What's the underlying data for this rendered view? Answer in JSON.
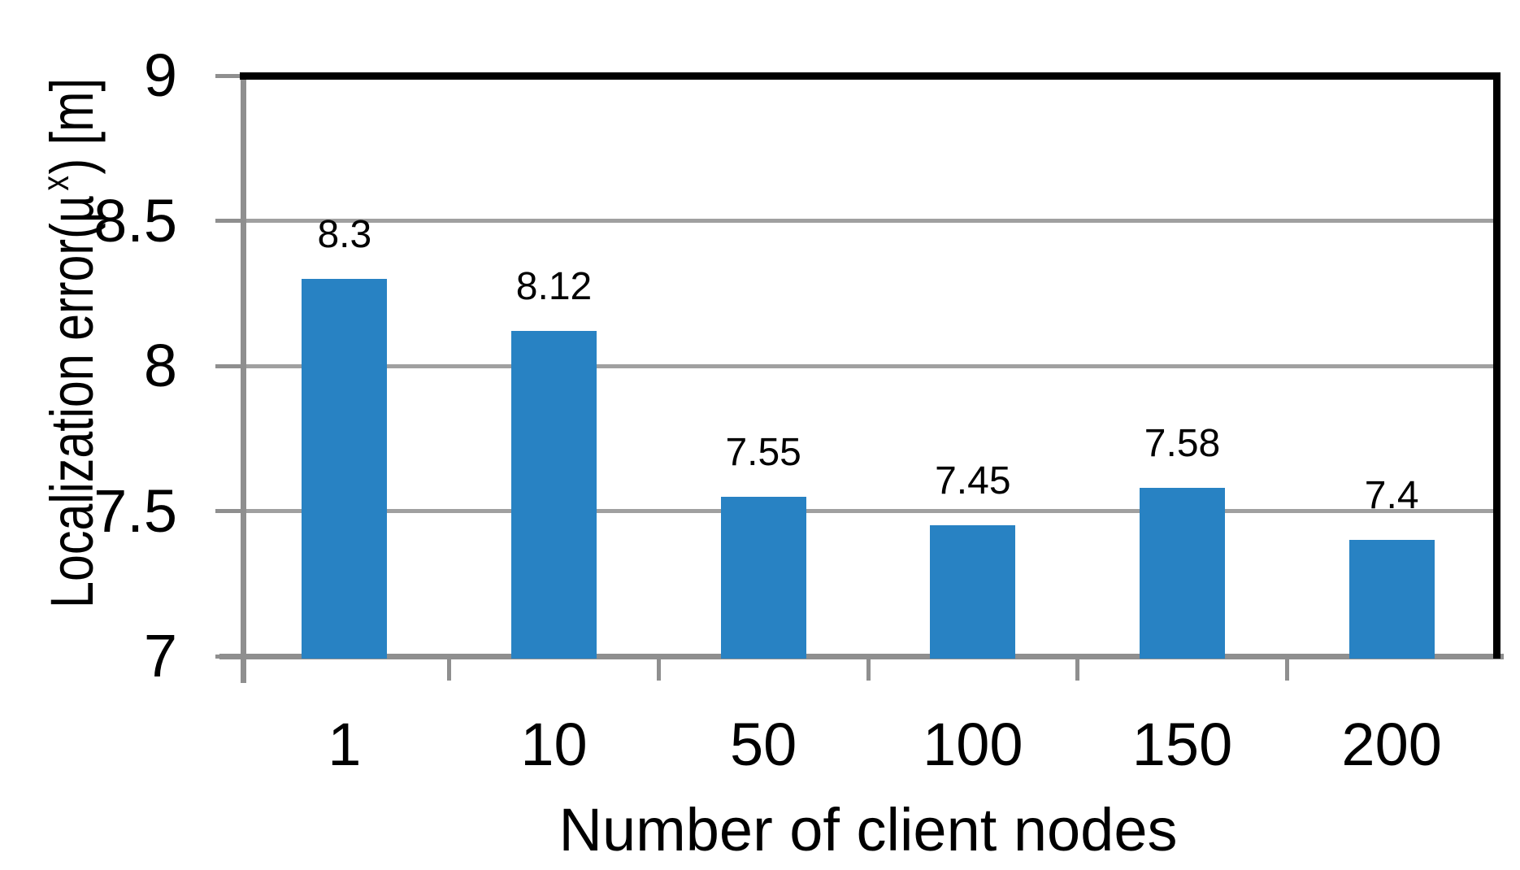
{
  "chart_data": {
    "type": "bar",
    "title": "",
    "xlabel": "Number of client nodes",
    "ylabel": "Localization error(µx) [m]",
    "ylabel_parts": {
      "prefix": "Localization error(µ",
      "superscript": "x",
      "suffix": ") [m]"
    },
    "categories": [
      "1",
      "10",
      "50",
      "100",
      "150",
      "200"
    ],
    "values": [
      8.3,
      8.12,
      7.55,
      7.45,
      7.58,
      7.4
    ],
    "bar_labels": [
      "8.3",
      "8.12",
      "7.55",
      "7.45",
      "7.58",
      "7.4"
    ],
    "ylim": [
      7,
      9
    ],
    "yticks": [
      {
        "value": 7,
        "label": "7"
      },
      {
        "value": 7.5,
        "label": "7.5"
      },
      {
        "value": 8,
        "label": "8"
      },
      {
        "value": 8.5,
        "label": "8.5"
      },
      {
        "value": 9,
        "label": "9"
      }
    ],
    "grid": true,
    "legend": "none",
    "colors": {
      "bar": "#2882C3",
      "gridline": "#A0A0A0",
      "axis": "#8F8F8F",
      "plot_border": "#000000",
      "text": "#000000"
    }
  }
}
